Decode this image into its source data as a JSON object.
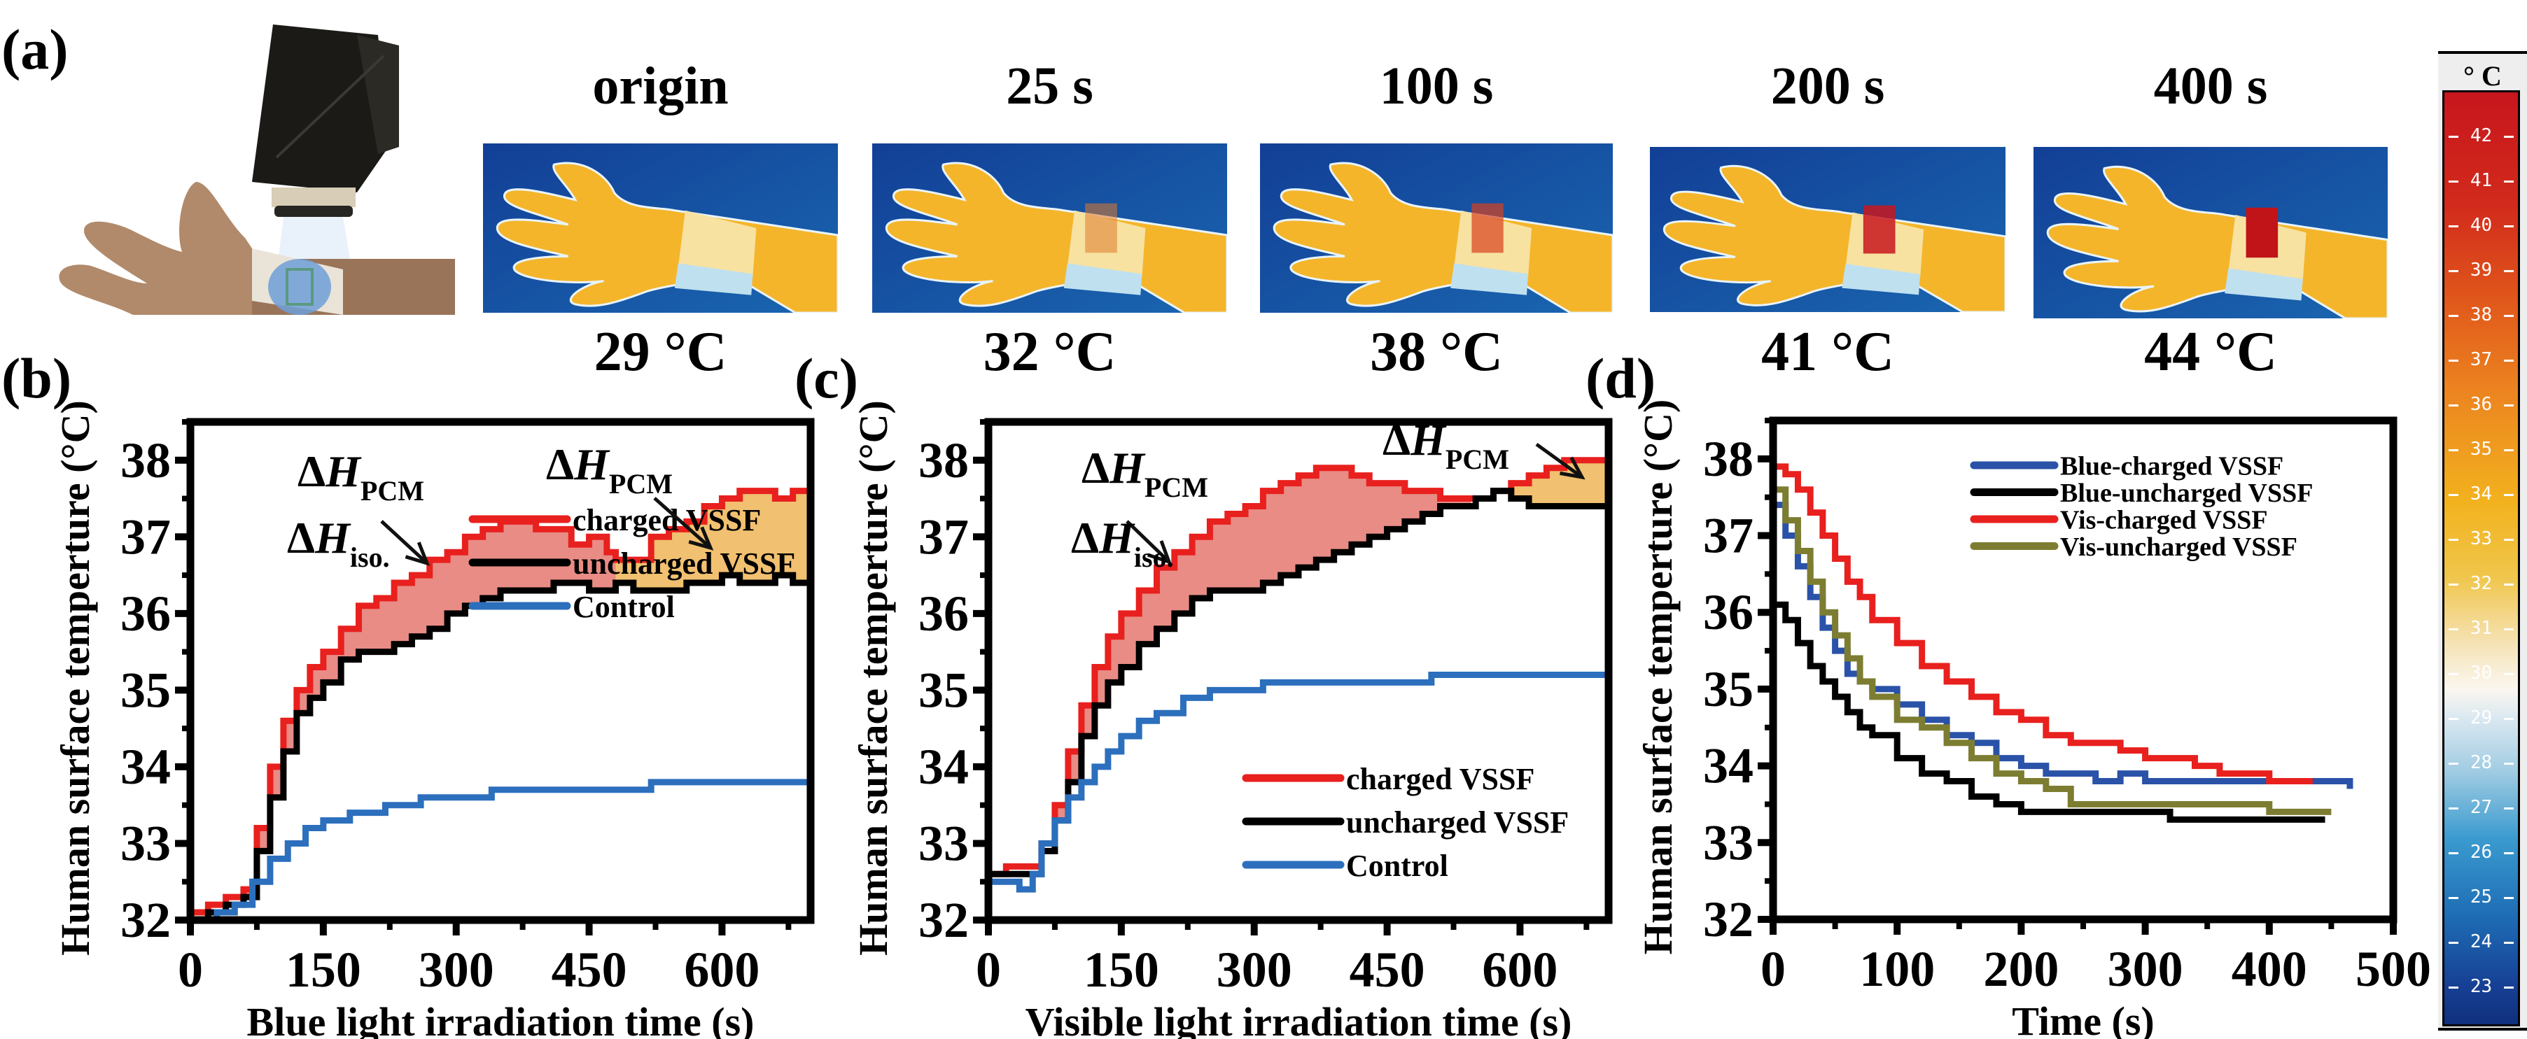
{
  "figure": {
    "panel_labels": {
      "a": "(a)",
      "b": "(b)",
      "c": "(c)",
      "d": "(d)"
    },
    "photo": {
      "description": "hand wearing VSSF wristband under light source"
    },
    "thermal_images": [
      {
        "time": "origin",
        "temperature": "29 °C"
      },
      {
        "time": "25 s",
        "temperature": "32 °C"
      },
      {
        "time": "100 s",
        "temperature": "38 °C"
      },
      {
        "time": "200 s",
        "temperature": "41 °C"
      },
      {
        "time": "400 s",
        "temperature": "44 °C"
      }
    ],
    "colorbar": {
      "unit": "° C",
      "ticks": [
        42,
        41,
        40,
        39,
        38,
        37,
        36,
        35,
        34,
        33,
        32,
        31,
        30,
        29,
        28,
        27,
        26,
        25,
        24,
        23
      ],
      "colors": {
        "hot": "#c8161d",
        "mid": "#f2b21e",
        "neutral": "#fbf7ef",
        "cold": "#10307c"
      }
    }
  },
  "chart_data": [
    {
      "id": "b",
      "type": "line",
      "title": "",
      "xlabel": "Blue light irradiation time (s)",
      "ylabel": "Human surface temperture (°C)",
      "xlim": [
        0,
        700
      ],
      "ylim": [
        32,
        38.5
      ],
      "xticks": [
        0,
        150,
        300,
        450,
        600
      ],
      "yticks": [
        32,
        33,
        34,
        35,
        36,
        37,
        38
      ],
      "grid": false,
      "legend_position": "center-right",
      "annotations": [
        {
          "text": "ΔH",
          "sub": "PCM",
          "region": "iso"
        },
        {
          "text": "ΔH",
          "sub": "iso.",
          "region": "iso"
        },
        {
          "text": "ΔH",
          "sub": "PCM",
          "region": "pcm"
        }
      ],
      "fills": [
        {
          "name": "ΔH_iso region",
          "between": [
            "charged VSSF",
            "uncharged VSSF"
          ],
          "x_range": [
            60,
            480
          ],
          "color": "#e57f78"
        },
        {
          "name": "ΔH_PCM region",
          "between": [
            "charged VSSF",
            "uncharged VSSF"
          ],
          "x_range": [
            480,
            700
          ],
          "color": "#efb961"
        }
      ],
      "series": [
        {
          "name": "charged VSSF",
          "color": "#e8201e",
          "x": [
            0,
            20,
            40,
            60,
            75,
            90,
            105,
            120,
            135,
            150,
            170,
            190,
            210,
            230,
            250,
            270,
            290,
            310,
            330,
            350,
            370,
            390,
            410,
            430,
            450,
            470,
            480,
            500,
            520,
            540,
            560,
            580,
            600,
            620,
            640,
            660,
            680,
            700
          ],
          "y": [
            32.1,
            32.2,
            32.3,
            32.4,
            33.2,
            34.0,
            34.6,
            35.0,
            35.3,
            35.5,
            35.8,
            36.1,
            36.2,
            36.4,
            36.5,
            36.7,
            36.8,
            37.0,
            37.1,
            37.2,
            37.2,
            37.1,
            37.1,
            36.9,
            37.0,
            36.8,
            36.7,
            36.7,
            37.0,
            37.1,
            37.2,
            37.4,
            37.5,
            37.6,
            37.6,
            37.5,
            37.6,
            37.6
          ]
        },
        {
          "name": "uncharged VSSF",
          "color": "#000000",
          "x": [
            0,
            20,
            40,
            60,
            75,
            90,
            105,
            120,
            135,
            150,
            170,
            190,
            210,
            230,
            250,
            270,
            290,
            310,
            330,
            350,
            370,
            390,
            410,
            430,
            450,
            470,
            480,
            500,
            520,
            540,
            560,
            580,
            600,
            620,
            640,
            660,
            680,
            700
          ],
          "y": [
            32.0,
            32.1,
            32.2,
            32.3,
            32.9,
            33.6,
            34.2,
            34.7,
            34.9,
            35.1,
            35.4,
            35.5,
            35.5,
            35.6,
            35.7,
            35.8,
            36.0,
            36.1,
            36.2,
            36.3,
            36.3,
            36.3,
            36.4,
            36.4,
            36.3,
            36.3,
            36.4,
            36.3,
            36.3,
            36.3,
            36.4,
            36.4,
            36.5,
            36.4,
            36.4,
            36.5,
            36.4,
            36.4
          ]
        },
        {
          "name": "Control",
          "color": "#2c6fbd",
          "x": [
            0,
            30,
            50,
            70,
            90,
            110,
            130,
            150,
            180,
            220,
            260,
            300,
            340,
            400,
            450,
            500,
            520,
            540,
            600,
            650,
            700
          ],
          "y": [
            32.0,
            32.1,
            32.2,
            32.5,
            32.8,
            33.0,
            33.2,
            33.3,
            33.4,
            33.5,
            33.6,
            33.6,
            33.7,
            33.7,
            33.7,
            33.7,
            33.8,
            33.8,
            33.8,
            33.8,
            33.8
          ]
        }
      ]
    },
    {
      "id": "c",
      "type": "line",
      "title": "",
      "xlabel": "Visible light irradiation time (s)",
      "ylabel": "Human surface temperture (°C)",
      "xlim": [
        0,
        700
      ],
      "ylim": [
        32,
        38.5
      ],
      "xticks": [
        0,
        150,
        300,
        450,
        600
      ],
      "yticks": [
        32,
        33,
        34,
        35,
        36,
        37,
        38
      ],
      "grid": false,
      "legend_position": "bottom-right",
      "annotations": [
        {
          "text": "ΔH",
          "sub": "PCM",
          "region": "iso"
        },
        {
          "text": "ΔH",
          "sub": "iso.",
          "region": "iso"
        },
        {
          "text": "ΔH",
          "sub": "PCM",
          "region": "pcm"
        }
      ],
      "fills": [
        {
          "name": "ΔH_iso region",
          "between": [
            "charged VSSF",
            "uncharged VSSF"
          ],
          "x_range": [
            75,
            545
          ],
          "color": "#e57f78"
        },
        {
          "name": "ΔH_PCM region",
          "between": [
            "charged VSSF",
            "uncharged VSSF"
          ],
          "x_range": [
            575,
            700
          ],
          "color": "#efb961"
        }
      ],
      "series": [
        {
          "name": "charged VSSF",
          "color": "#e8201e",
          "x": [
            0,
            20,
            45,
            60,
            75,
            90,
            105,
            120,
            135,
            150,
            170,
            190,
            210,
            230,
            250,
            270,
            290,
            310,
            330,
            350,
            370,
            390,
            410,
            430,
            450,
            470,
            490,
            510,
            530,
            550,
            570,
            590,
            610,
            630,
            650,
            670,
            700
          ],
          "y": [
            32.6,
            32.7,
            32.7,
            33.0,
            33.5,
            34.2,
            34.8,
            35.3,
            35.7,
            36.0,
            36.3,
            36.6,
            36.8,
            37.0,
            37.2,
            37.3,
            37.4,
            37.6,
            37.7,
            37.8,
            37.9,
            37.9,
            37.8,
            37.7,
            37.7,
            37.6,
            37.6,
            37.5,
            37.5,
            37.5,
            37.6,
            37.7,
            37.8,
            37.9,
            38.0,
            38.0,
            38.0
          ]
        },
        {
          "name": "uncharged VSSF",
          "color": "#000000",
          "x": [
            0,
            20,
            45,
            60,
            75,
            90,
            105,
            120,
            135,
            150,
            170,
            190,
            210,
            230,
            250,
            270,
            290,
            310,
            330,
            350,
            370,
            390,
            410,
            430,
            450,
            470,
            490,
            510,
            530,
            550,
            570,
            590,
            610,
            630,
            650,
            670,
            700
          ],
          "y": [
            32.6,
            32.6,
            32.6,
            32.9,
            33.3,
            33.8,
            34.4,
            34.8,
            35.1,
            35.3,
            35.6,
            35.8,
            36.0,
            36.2,
            36.3,
            36.3,
            36.3,
            36.4,
            36.5,
            36.6,
            36.7,
            36.8,
            36.9,
            37.0,
            37.1,
            37.2,
            37.3,
            37.4,
            37.4,
            37.5,
            37.6,
            37.5,
            37.4,
            37.4,
            37.4,
            37.4,
            37.4
          ]
        },
        {
          "name": "Control",
          "color": "#2c6fbd",
          "x": [
            0,
            20,
            35,
            50,
            60,
            75,
            90,
            105,
            120,
            135,
            150,
            170,
            190,
            220,
            250,
            280,
            310,
            350,
            400,
            450,
            500,
            550,
            600,
            620,
            650,
            700
          ],
          "y": [
            32.5,
            32.5,
            32.4,
            32.6,
            33.0,
            33.3,
            33.6,
            33.8,
            34.0,
            34.2,
            34.4,
            34.6,
            34.7,
            34.9,
            35.0,
            35.0,
            35.1,
            35.1,
            35.1,
            35.1,
            35.2,
            35.2,
            35.2,
            35.2,
            35.2,
            35.2
          ]
        }
      ]
    },
    {
      "id": "d",
      "type": "line",
      "title": "",
      "xlabel": "Time (s)",
      "ylabel": "Human surface temperture (°C)",
      "xlim": [
        0,
        500
      ],
      "ylim": [
        32,
        38.5
      ],
      "xticks": [
        0,
        100,
        200,
        300,
        400,
        500
      ],
      "yticks": [
        32,
        33,
        34,
        35,
        36,
        37,
        38
      ],
      "grid": false,
      "legend_position": "top-right",
      "series": [
        {
          "name": "Blue-charged VSSF",
          "color": "#2a52a8",
          "x": [
            0,
            10,
            20,
            30,
            40,
            50,
            60,
            70,
            80,
            100,
            120,
            140,
            160,
            180,
            200,
            220,
            240,
            260,
            280,
            300,
            350,
            400,
            440,
            465
          ],
          "y": [
            37.4,
            37.0,
            36.6,
            36.2,
            35.8,
            35.5,
            35.2,
            35.1,
            35.0,
            34.8,
            34.6,
            34.4,
            34.3,
            34.1,
            34.0,
            33.9,
            33.9,
            33.8,
            33.9,
            33.8,
            33.8,
            33.8,
            33.8,
            33.7
          ]
        },
        {
          "name": "Blue-uncharged VSSF",
          "color": "#000000",
          "x": [
            0,
            10,
            20,
            30,
            40,
            50,
            60,
            70,
            80,
            100,
            120,
            140,
            160,
            180,
            200,
            220,
            240,
            260,
            280,
            300,
            320,
            350,
            400,
            445
          ],
          "y": [
            36.1,
            35.9,
            35.6,
            35.3,
            35.1,
            34.9,
            34.7,
            34.5,
            34.4,
            34.1,
            33.9,
            33.8,
            33.6,
            33.5,
            33.4,
            33.4,
            33.4,
            33.4,
            33.4,
            33.4,
            33.3,
            33.3,
            33.3,
            33.3
          ]
        },
        {
          "name": "Vis-charged VSSF",
          "color": "#e8201e",
          "x": [
            0,
            10,
            20,
            30,
            40,
            50,
            60,
            70,
            80,
            100,
            120,
            140,
            160,
            180,
            200,
            220,
            240,
            260,
            280,
            300,
            320,
            340,
            360,
            380,
            400,
            420,
            435
          ],
          "y": [
            37.9,
            37.8,
            37.6,
            37.3,
            37.0,
            36.7,
            36.4,
            36.2,
            35.9,
            35.6,
            35.3,
            35.1,
            34.9,
            34.7,
            34.6,
            34.4,
            34.3,
            34.3,
            34.2,
            34.1,
            34.1,
            34.0,
            33.9,
            33.9,
            33.8,
            33.8,
            33.8
          ]
        },
        {
          "name": "Vis-uncharged VSSF",
          "color": "#7d7d32",
          "x": [
            0,
            10,
            20,
            30,
            40,
            50,
            60,
            70,
            80,
            100,
            120,
            140,
            160,
            180,
            200,
            220,
            240,
            260,
            280,
            300,
            320,
            350,
            400,
            450
          ],
          "y": [
            37.6,
            37.2,
            36.8,
            36.4,
            36.0,
            35.7,
            35.4,
            35.1,
            34.9,
            34.6,
            34.5,
            34.3,
            34.1,
            33.9,
            33.8,
            33.7,
            33.5,
            33.5,
            33.5,
            33.5,
            33.5,
            33.5,
            33.4,
            33.4
          ]
        }
      ]
    }
  ]
}
